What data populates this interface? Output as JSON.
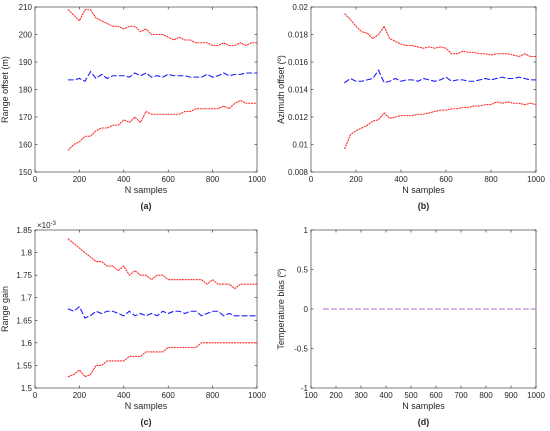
{
  "colors": {
    "bound": "#ff2a2a",
    "mean": "#1a1aff",
    "zero": "#b266c6",
    "axis": "#262626"
  },
  "chart_data": [
    {
      "id": "a",
      "type": "line",
      "caption": "(a)",
      "xlabel": "N samples",
      "ylabel": "Range offset (m)",
      "xlim": [
        0,
        1000
      ],
      "ylim": [
        150,
        210
      ],
      "xticks": [
        0,
        200,
        400,
        600,
        800,
        1000
      ],
      "xtick_labels": [
        "0",
        "200",
        "400",
        "600",
        "800",
        "1000"
      ],
      "yticks": [
        150,
        160,
        170,
        180,
        190,
        200,
        210
      ],
      "ytick_labels": [
        "150",
        "160",
        "170",
        "180",
        "190",
        "200",
        "210"
      ],
      "exponent_label": "",
      "x": [
        150,
        175,
        200,
        225,
        250,
        275,
        300,
        325,
        350,
        375,
        400,
        425,
        450,
        475,
        500,
        525,
        550,
        575,
        600,
        625,
        650,
        675,
        700,
        725,
        750,
        775,
        800,
        825,
        850,
        875,
        900,
        925,
        950,
        975,
        1000
      ],
      "series": [
        {
          "style": "upper",
          "values": [
            209,
            207,
            205,
            209,
            209,
            206,
            205,
            204,
            203,
            203,
            202,
            203,
            203,
            201,
            202,
            200,
            200,
            200,
            199,
            198,
            199,
            198,
            198,
            197,
            197,
            197,
            196,
            196,
            197,
            196,
            196,
            197,
            196,
            197,
            197
          ]
        },
        {
          "style": "mean",
          "values": [
            183.5,
            183.5,
            184,
            183,
            186.5,
            184,
            185.5,
            184,
            185,
            185,
            185,
            184.5,
            186,
            185,
            186,
            184.5,
            185,
            184.5,
            185.5,
            185,
            185,
            185,
            184.5,
            184.5,
            184.5,
            185.5,
            184.5,
            185,
            186,
            185,
            185.5,
            185.5,
            186,
            186,
            186
          ]
        },
        {
          "style": "lower",
          "values": [
            158,
            160,
            161,
            163,
            163,
            165,
            166,
            166,
            167,
            167,
            169,
            168,
            170,
            168,
            172,
            171,
            171,
            171,
            171,
            171,
            171,
            172,
            172,
            173,
            173,
            173,
            173,
            173,
            174,
            173,
            175,
            176,
            175,
            175,
            175
          ]
        }
      ]
    },
    {
      "id": "b",
      "type": "line",
      "caption": "(b)",
      "xlabel": "N samples",
      "ylabel": "Azimuth offset (º)",
      "xlim": [
        0,
        1000
      ],
      "ylim": [
        0.008,
        0.02
      ],
      "xticks": [
        0,
        200,
        400,
        600,
        800,
        1000
      ],
      "xtick_labels": [
        "0",
        "200",
        "400",
        "600",
        "800",
        "1000"
      ],
      "yticks": [
        0.008,
        0.01,
        0.012,
        0.014,
        0.016,
        0.018,
        0.02
      ],
      "ytick_labels": [
        "0.008",
        "0.01",
        "0.012",
        "0.014",
        "0.016",
        "0.018",
        "0.02"
      ],
      "exponent_label": "",
      "x": [
        150,
        175,
        200,
        225,
        250,
        275,
        300,
        325,
        350,
        375,
        400,
        425,
        450,
        475,
        500,
        525,
        550,
        575,
        600,
        625,
        650,
        675,
        700,
        725,
        750,
        775,
        800,
        825,
        850,
        875,
        900,
        925,
        950,
        975,
        1000
      ],
      "series": [
        {
          "style": "upper",
          "values": [
            0.0195,
            0.0191,
            0.0186,
            0.0182,
            0.0181,
            0.0177,
            0.018,
            0.0186,
            0.0177,
            0.0175,
            0.0173,
            0.0172,
            0.0172,
            0.0171,
            0.017,
            0.0171,
            0.017,
            0.0171,
            0.017,
            0.0166,
            0.0166,
            0.0168,
            0.0167,
            0.0167,
            0.0166,
            0.0166,
            0.0165,
            0.0166,
            0.0166,
            0.0166,
            0.0165,
            0.0164,
            0.0166,
            0.0164,
            0.0164
          ]
        },
        {
          "style": "mean",
          "values": [
            0.0145,
            0.0148,
            0.0146,
            0.0146,
            0.0147,
            0.0148,
            0.0154,
            0.0145,
            0.0146,
            0.0148,
            0.0146,
            0.0147,
            0.0147,
            0.0146,
            0.0148,
            0.0147,
            0.0146,
            0.0147,
            0.0149,
            0.0146,
            0.0147,
            0.0147,
            0.0146,
            0.0146,
            0.0147,
            0.0148,
            0.0147,
            0.0148,
            0.0149,
            0.0148,
            0.0148,
            0.0149,
            0.0148,
            0.0147,
            0.0147
          ]
        },
        {
          "style": "lower",
          "values": [
            0.0097,
            0.0107,
            0.011,
            0.0112,
            0.0114,
            0.0117,
            0.0118,
            0.0123,
            0.0119,
            0.012,
            0.0121,
            0.0121,
            0.0121,
            0.0122,
            0.0122,
            0.0123,
            0.0124,
            0.0125,
            0.0125,
            0.0126,
            0.0126,
            0.0127,
            0.0127,
            0.0128,
            0.0128,
            0.0129,
            0.0129,
            0.0131,
            0.013,
            0.0131,
            0.013,
            0.013,
            0.0129,
            0.013,
            0.0129
          ]
        }
      ]
    },
    {
      "id": "c",
      "type": "line",
      "caption": "(c)",
      "xlabel": "N samples",
      "ylabel": "Range gain",
      "xlim": [
        0,
        1000
      ],
      "ylim": [
        0.0015,
        0.00185
      ],
      "xticks": [
        0,
        200,
        400,
        600,
        800,
        1000
      ],
      "xtick_labels": [
        "0",
        "200",
        "400",
        "600",
        "800",
        "1000"
      ],
      "yticks": [
        0.0015,
        0.00155,
        0.0016,
        0.00165,
        0.0017,
        0.00175,
        0.0018,
        0.00185
      ],
      "ytick_labels": [
        "1.5",
        "1.55",
        "1.6",
        "1.65",
        "1.7",
        "1.75",
        "1.8",
        "1.85"
      ],
      "exponent_label": "×10",
      "exponent_power": "-3",
      "x": [
        150,
        175,
        200,
        225,
        250,
        275,
        300,
        325,
        350,
        375,
        400,
        425,
        450,
        475,
        500,
        525,
        550,
        575,
        600,
        625,
        650,
        675,
        700,
        725,
        750,
        775,
        800,
        825,
        850,
        875,
        900,
        925,
        950,
        975,
        1000
      ],
      "series": [
        {
          "style": "upper",
          "values": [
            0.00183,
            0.00182,
            0.00181,
            0.0018,
            0.00179,
            0.00178,
            0.00178,
            0.00177,
            0.00177,
            0.00176,
            0.00177,
            0.00175,
            0.00176,
            0.00175,
            0.00175,
            0.00174,
            0.00175,
            0.00175,
            0.00174,
            0.00174,
            0.00174,
            0.00174,
            0.00174,
            0.00174,
            0.00174,
            0.00173,
            0.00174,
            0.00173,
            0.00173,
            0.00173,
            0.00172,
            0.00173,
            0.00173,
            0.00173,
            0.00173
          ]
        },
        {
          "style": "mean",
          "values": [
            0.001675,
            0.00167,
            0.00168,
            0.001655,
            0.00166,
            0.00167,
            0.001665,
            0.00167,
            0.00167,
            0.001665,
            0.00166,
            0.00167,
            0.00166,
            0.001665,
            0.00166,
            0.001665,
            0.00166,
            0.00167,
            0.001665,
            0.00167,
            0.00167,
            0.001665,
            0.00167,
            0.00167,
            0.00166,
            0.001665,
            0.00167,
            0.00167,
            0.00166,
            0.001665,
            0.00166,
            0.00166,
            0.00166,
            0.00166,
            0.00166
          ]
        },
        {
          "style": "lower",
          "values": [
            0.001525,
            0.00153,
            0.00154,
            0.001525,
            0.00153,
            0.00155,
            0.00155,
            0.00156,
            0.00156,
            0.00156,
            0.00156,
            0.00157,
            0.00157,
            0.00157,
            0.00158,
            0.00158,
            0.00158,
            0.00158,
            0.00159,
            0.00159,
            0.00159,
            0.00159,
            0.00159,
            0.00159,
            0.0016,
            0.0016,
            0.0016,
            0.0016,
            0.0016,
            0.0016,
            0.0016,
            0.0016,
            0.0016,
            0.0016,
            0.0016
          ]
        }
      ]
    },
    {
      "id": "d",
      "type": "line",
      "caption": "(d)",
      "xlabel": "N samples",
      "ylabel": "Temperature bias (º)",
      "xlim": [
        100,
        1000
      ],
      "ylim": [
        -1,
        1
      ],
      "xticks": [
        100,
        200,
        300,
        400,
        500,
        600,
        700,
        800,
        900,
        1000
      ],
      "xtick_labels": [
        "100",
        "200",
        "300",
        "400",
        "500",
        "600",
        "700",
        "800",
        "900",
        "1000"
      ],
      "yticks": [
        -1,
        -0.5,
        0,
        0.5,
        1
      ],
      "ytick_labels": [
        "-1",
        "-0.5",
        "0",
        "0.5",
        "1"
      ],
      "exponent_label": "",
      "x": [
        150,
        1000
      ],
      "series": [
        {
          "style": "zero",
          "values": [
            0,
            0
          ]
        }
      ]
    }
  ]
}
